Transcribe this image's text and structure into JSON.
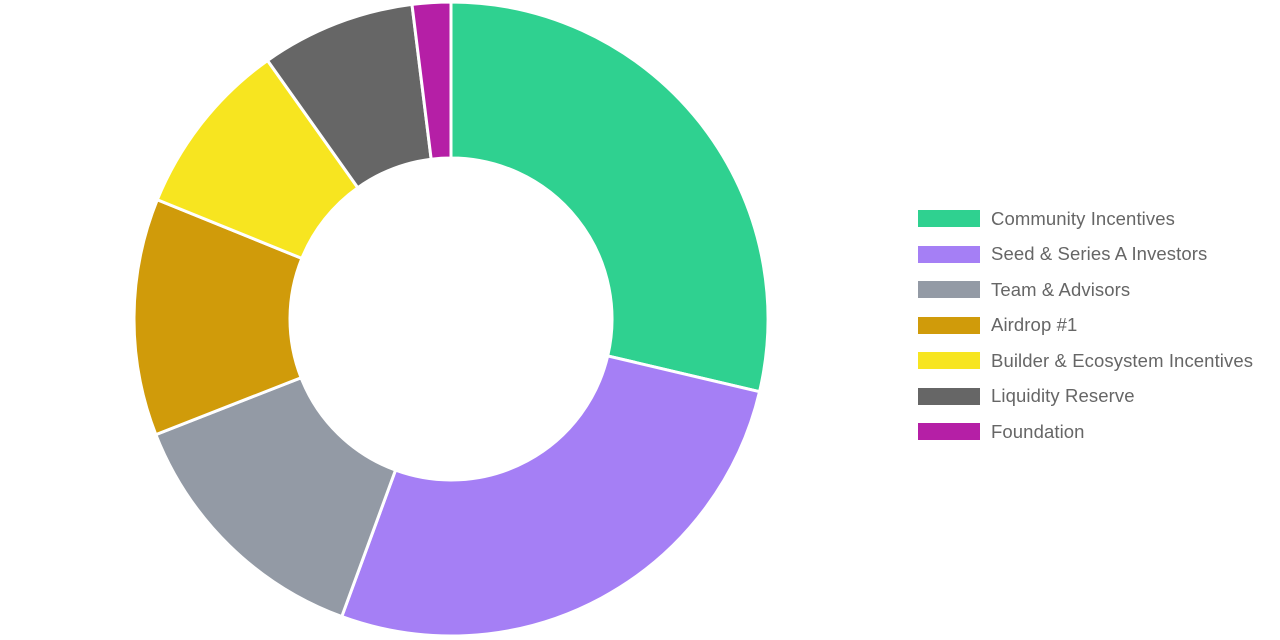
{
  "chart_data": {
    "type": "pie",
    "variant": "donut",
    "title": "",
    "legend_position": "right",
    "slices": [
      {
        "label": "Community Incentives",
        "value": 29.2,
        "color": "#2fd190"
      },
      {
        "label": "Seed & Series A Investors",
        "value": 27.4,
        "color": "#a57ff5"
      },
      {
        "label": "Team & Advisors",
        "value": 13.7,
        "color": "#939aa5"
      },
      {
        "label": "Airdrop #1",
        "value": 12.3,
        "color": "#d09b0a"
      },
      {
        "label": "Builder & Ecosystem Incentives",
        "value": 9.2,
        "color": "#f7e520"
      },
      {
        "label": "Liquidity Reserve",
        "value": 8.0,
        "color": "#666666"
      },
      {
        "label": "Foundation",
        "value": 2.0,
        "color": "#b51fa6"
      }
    ]
  }
}
